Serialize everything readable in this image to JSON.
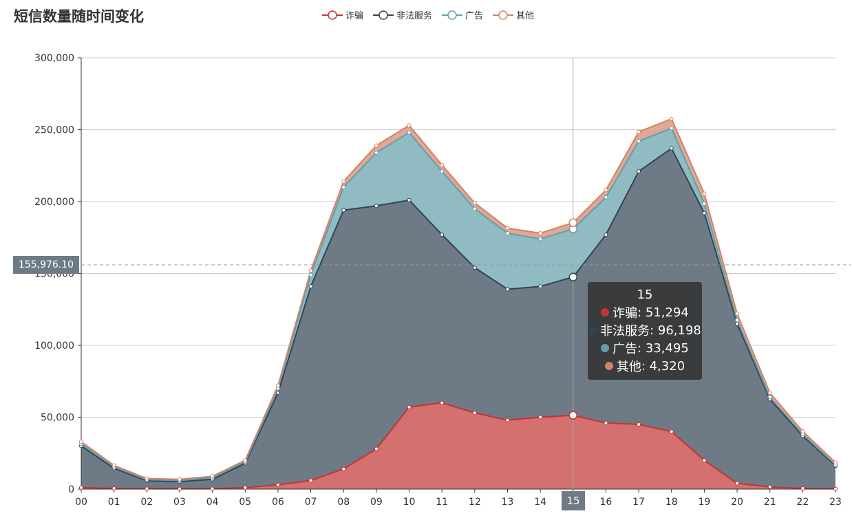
{
  "title": "短信数量随时间变化",
  "colors": {
    "fraud": "#c23531",
    "illegal": "#2f4554",
    "ad": "#61a0a8",
    "other": "#d48265"
  },
  "tooltip": {
    "header": "15",
    "rows": [
      {
        "name": "诈骗",
        "value": "51,294"
      },
      {
        "name": "非法服务",
        "value": "96,198"
      },
      {
        "name": "广告",
        "value": "33,495"
      },
      {
        "name": "其他",
        "value": "4,320"
      }
    ]
  },
  "axis_pointer": {
    "x_label": "15",
    "y_label": "155,976.10"
  },
  "chart_data": {
    "type": "area",
    "stacked": true,
    "title": "短信数量随时间变化",
    "x": [
      "00",
      "01",
      "02",
      "03",
      "04",
      "05",
      "06",
      "07",
      "08",
      "09",
      "10",
      "11",
      "12",
      "13",
      "14",
      "15",
      "16",
      "17",
      "18",
      "19",
      "20",
      "21",
      "22",
      "23"
    ],
    "ylim": [
      0,
      300000
    ],
    "yticks": [
      "0",
      "50,000",
      "100,000",
      "150,000",
      "200,000",
      "250,000",
      "300,000"
    ],
    "ytick_values": [
      0,
      50000,
      100000,
      150000,
      200000,
      250000,
      300000
    ],
    "grid": true,
    "legend_position": "top-center",
    "series": [
      {
        "name": "诈骗",
        "values": [
          1000,
          500,
          300,
          200,
          300,
          1000,
          3000,
          6000,
          14000,
          28000,
          57000,
          60000,
          53000,
          48000,
          50000,
          51294,
          46000,
          45000,
          40000,
          20000,
          4000,
          1500,
          500,
          200
        ]
      },
      {
        "name": "非法服务",
        "values": [
          29000,
          14000,
          5500,
          5000,
          6500,
          17000,
          64000,
          135000,
          180000,
          169000,
          144000,
          117000,
          101000,
          91000,
          91000,
          96198,
          131000,
          176000,
          197000,
          172000,
          111000,
          61000,
          36500,
          16000
        ]
      },
      {
        "name": "广告",
        "values": [
          1500,
          1000,
          800,
          800,
          1200,
          1000,
          3000,
          8000,
          16000,
          37000,
          47000,
          44000,
          41000,
          39000,
          33000,
          33495,
          26000,
          21000,
          14000,
          6500,
          2500,
          1500,
          1200,
          800
        ]
      },
      {
        "name": "其他",
        "values": [
          1500,
          1000,
          800,
          800,
          900,
          1000,
          2000,
          3000,
          4000,
          5000,
          5000,
          4500,
          4000,
          3500,
          4000,
          4320,
          5000,
          6500,
          6500,
          7000,
          4500,
          3000,
          2000,
          1500
        ]
      }
    ],
    "highlighted_category": "15",
    "reference_value": 155976.1
  }
}
